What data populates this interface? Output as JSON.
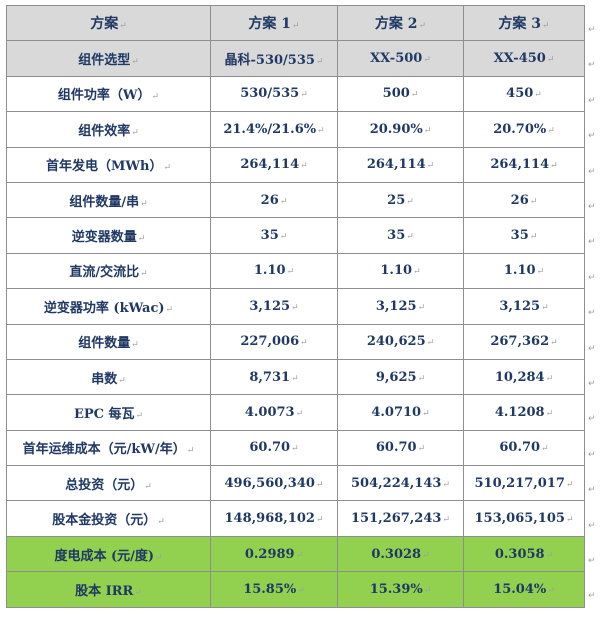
{
  "header": {
    "label": "方案",
    "schemes": [
      "方案 1",
      "方案 2",
      "方案 3"
    ]
  },
  "rows": [
    {
      "label": "组件选型",
      "values": [
        "晶科-530/535",
        "XX-500",
        "XX-450"
      ]
    },
    {
      "label": "组件功率（W）",
      "values": [
        "530/535",
        "500",
        "450"
      ]
    },
    {
      "label": "组件效率",
      "values": [
        "21.4%/21.6%",
        "20.90%",
        "20.70%"
      ]
    },
    {
      "label": "首年发电（MWh）",
      "values": [
        "264,114",
        "264,114",
        "264,114"
      ]
    },
    {
      "label": "组件数量/串",
      "values": [
        "26",
        "25",
        "26"
      ]
    },
    {
      "label": "逆变器数量",
      "values": [
        "35",
        "35",
        "35"
      ]
    },
    {
      "label": "直流/交流比",
      "values": [
        "1.10",
        "1.10",
        "1.10"
      ]
    },
    {
      "label": "逆变器功率 (kWac)",
      "values": [
        "3,125",
        "3,125",
        "3,125"
      ]
    },
    {
      "label": "组件数量",
      "values": [
        "227,006",
        "240,625",
        "267,362"
      ]
    },
    {
      "label": "串数",
      "values": [
        "8,731",
        "9,625",
        "10,284"
      ]
    },
    {
      "label": "EPC 每瓦",
      "values": [
        "4.0073",
        "4.0710",
        "4.1208"
      ]
    },
    {
      "label": "首年运维成本（元/kW/年）",
      "values": [
        "60.70",
        "60.70",
        "60.70"
      ]
    },
    {
      "label": "总投资（元）",
      "values": [
        "496,560,340",
        "504,224,143",
        "510,217,017"
      ]
    },
    {
      "label": "股本金投资（元）",
      "values": [
        "148,968,102",
        "151,267,243",
        "153,065,105"
      ]
    },
    {
      "label": "度电成本 (元/度)",
      "values": [
        "0.2989",
        "0.3028",
        "0.3058"
      ]
    },
    {
      "label": "股本 IRR",
      "values": [
        "15.85%",
        "15.39%",
        "15.04%"
      ]
    }
  ],
  "colors": {
    "header_bg": "#d9d9d9",
    "highlight_bg": "#92d050",
    "text": "#1f3864",
    "border": "#8e8e8e"
  }
}
